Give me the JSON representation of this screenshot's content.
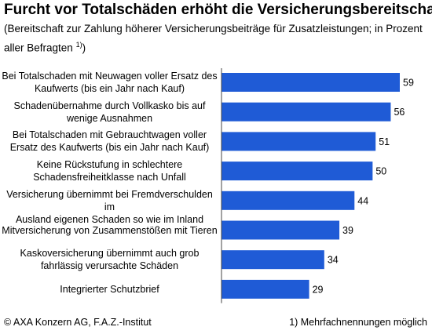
{
  "header": {
    "title": "Furcht vor Totalschäden erhöht die Versicherungsbereitschaft",
    "subtitle_line1": "(Bereitschaft zur Zahlung höherer Versicherungsbeiträge für Zusatzleistungen; in Prozent",
    "subtitle_line2": "aller Befragten ",
    "subtitle_sup": "1)",
    "subtitle_end": ")"
  },
  "footer": {
    "source": "© AXA Konzern AG, F.A.Z.-Institut",
    "note": "1) Mehrfachnennungen möglich"
  },
  "colors": {
    "bar": "#1f5bd6"
  },
  "chart_data": {
    "type": "bar",
    "orientation": "horizontal",
    "categories": [
      "Bei Totalschaden mit Neuwagen voller Ersatz des Kaufwerts (bis ein Jahr nach Kauf)",
      "Schadenübernahme durch Vollkasko bis auf wenige Ausnahmen",
      "Bei Totalschaden mit Gebrauchtwagen voller Ersatz des Kaufwerts (bis ein Jahr nach Kauf)",
      "Keine Rückstufung in schlechtere Schadensfreiheitklasse nach Unfall",
      "Versicherung übernimmt bei Fremdverschulden im Ausland eigenen Schaden so wie im Inland",
      "Mitversicherung von Zusammenstößen mit Tieren",
      "Kaskoversicherung übernimmt auch grob fahrlässig verursachte Schäden",
      "Integrierter Schutzbrief"
    ],
    "label_lines": [
      [
        "Bei Totalschaden mit Neuwagen voller Ersatz des",
        "Kaufwerts (bis ein Jahr nach Kauf)"
      ],
      [
        "Schadenübernahme durch Vollkasko bis auf",
        "wenige Ausnahmen"
      ],
      [
        "Bei Totalschaden mit Gebrauchtwagen voller",
        "Ersatz des Kaufwerts (bis ein Jahr nach Kauf)"
      ],
      [
        "Keine Rückstufung in schlechtere",
        "Schadensfreiheitklasse nach Unfall"
      ],
      [
        "Versicherung übernimmt bei Fremdverschulden im",
        "Ausland eigenen Schaden so wie im Inland"
      ],
      [
        "Mitversicherung von Zusammenstößen mit Tieren"
      ],
      [
        "Kaskoversicherung übernimmt auch grob",
        "fahrlässig verursachte Schäden"
      ],
      [
        "Integrierter Schutzbrief"
      ]
    ],
    "values": [
      59,
      56,
      51,
      50,
      44,
      39,
      34,
      29
    ],
    "xlim": [
      0,
      59
    ],
    "grid": false,
    "legend": "none"
  }
}
